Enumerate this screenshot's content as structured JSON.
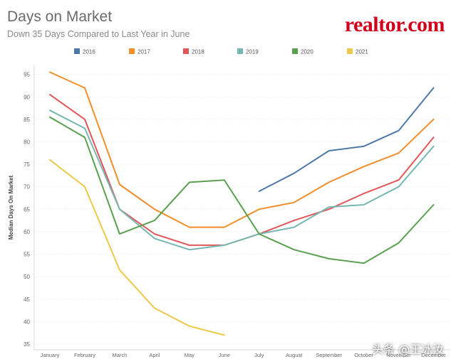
{
  "header": {
    "title": "Days on Market",
    "subtitle": "Down 35 Days Compared to Last Year in June",
    "logo_text": "realtor.com",
    "watermark": "头条 @王冰汝"
  },
  "colors": {
    "brand": "#d0021b",
    "axis_text": "#666666",
    "grid": "#e6e6e6"
  },
  "chart_data": {
    "type": "line",
    "title": "Days on Market",
    "subtitle": "Down 35 Days Compared to Last Year in June",
    "xlabel": "",
    "ylabel": "Median Days On Market",
    "categories": [
      "January",
      "February",
      "March",
      "April",
      "May",
      "June",
      "July",
      "August",
      "September",
      "October",
      "November",
      "December"
    ],
    "ylim": [
      35,
      97
    ],
    "yticks": [
      35,
      40,
      45,
      50,
      55,
      60,
      65,
      70,
      75,
      80,
      85,
      90,
      95
    ],
    "grid": true,
    "legend_position": "top",
    "series": [
      {
        "name": "2016",
        "color": "#4e79a7",
        "values": [
          null,
          null,
          null,
          null,
          null,
          null,
          69,
          73,
          78,
          79,
          82.5,
          92
        ]
      },
      {
        "name": "2017",
        "color": "#f28e2b",
        "values": [
          95.5,
          92,
          70.5,
          65,
          61,
          61,
          65,
          66.5,
          71,
          74.5,
          77.5,
          85
        ]
      },
      {
        "name": "2018",
        "color": "#e15759",
        "values": [
          90.5,
          85,
          65,
          59.5,
          57,
          57,
          59.5,
          62.5,
          65,
          68.5,
          71.5,
          81
        ]
      },
      {
        "name": "2019",
        "color": "#76b7b2",
        "values": [
          87,
          83,
          65,
          58.5,
          56,
          57,
          59.5,
          61,
          65.5,
          66,
          70,
          79
        ]
      },
      {
        "name": "2020",
        "color": "#59a14f",
        "values": [
          85.5,
          81,
          59.5,
          62.5,
          71,
          71.5,
          59.5,
          56,
          54,
          53,
          57.5,
          66
        ]
      },
      {
        "name": "2021",
        "color": "#edc948",
        "values": [
          76,
          70,
          51.5,
          43,
          39,
          37,
          null,
          null,
          null,
          null,
          null,
          null
        ]
      }
    ]
  }
}
